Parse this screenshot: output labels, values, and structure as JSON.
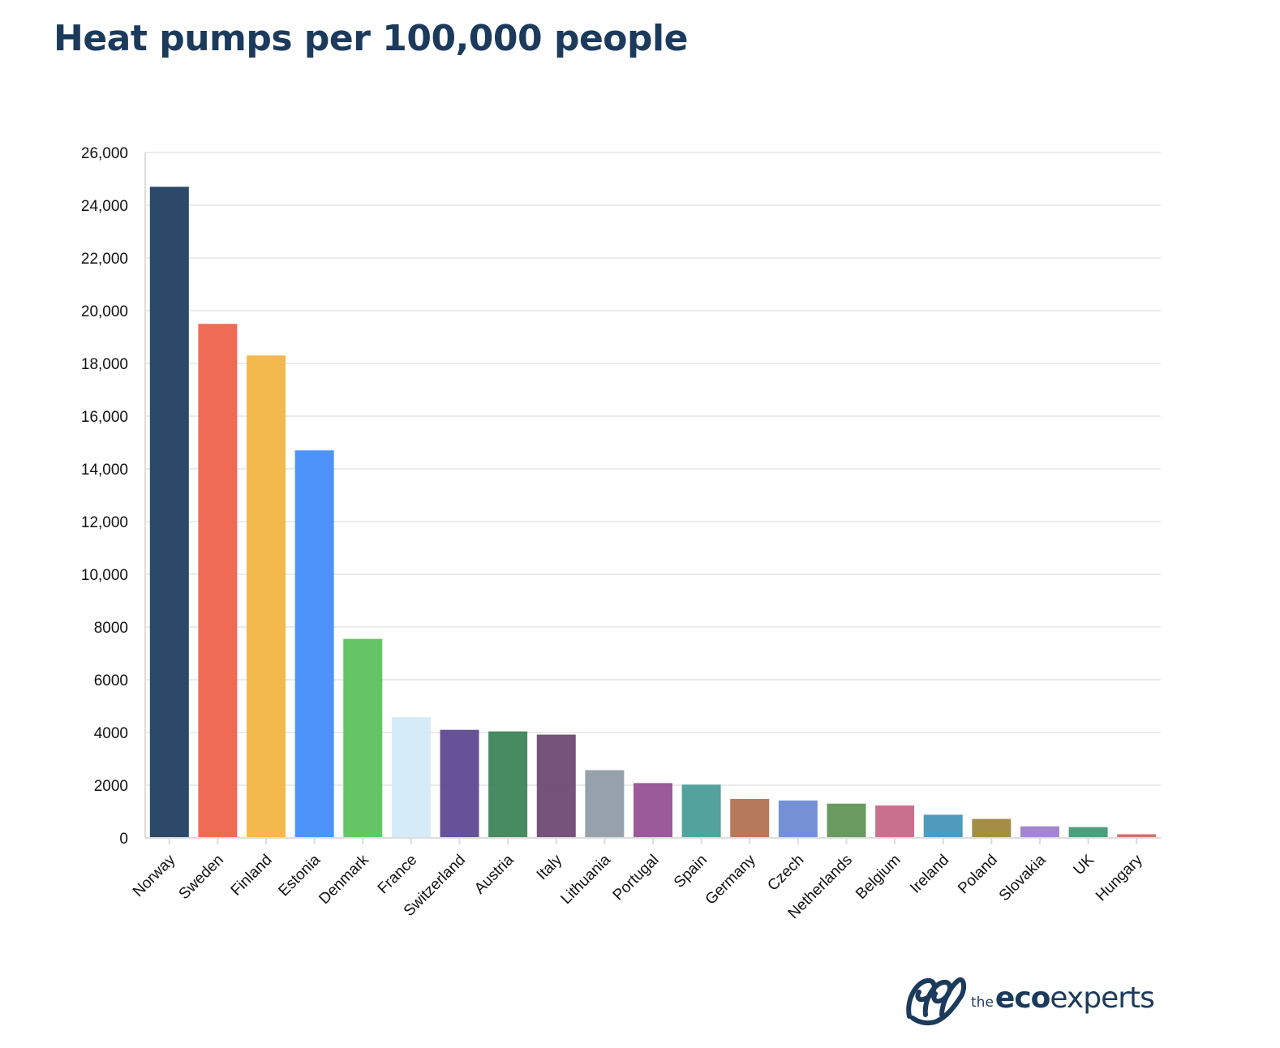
{
  "chart_data": {
    "type": "bar",
    "title": "Heat pumps per 100,000 people",
    "xlabel": "",
    "ylabel": "",
    "ylim": [
      0,
      26000
    ],
    "yticks": [
      0,
      2000,
      4000,
      6000,
      8000,
      10000,
      12000,
      14000,
      16000,
      18000,
      20000,
      22000,
      24000,
      26000
    ],
    "ytick_labels": [
      "0",
      "2000",
      "4000",
      "6000",
      "8000",
      "10,000",
      "12,000",
      "14,000",
      "16,000",
      "18,000",
      "20,000",
      "22,000",
      "24,000",
      "26,000"
    ],
    "grid": true,
    "legend": "none",
    "categories": [
      "Norway",
      "Sweden",
      "Finland",
      "Estonia",
      "Denmark",
      "France",
      "Switzerland",
      "Austria",
      "Italy",
      "Lithuania",
      "Portugal",
      "Spain",
      "Germany",
      "Czech",
      "Netherlands",
      "Belgium",
      "Ireland",
      "Poland",
      "Slovakia",
      "UK",
      "Hungary"
    ],
    "values": [
      24700,
      19500,
      18300,
      14700,
      7550,
      4580,
      4100,
      4040,
      3920,
      2570,
      2080,
      2020,
      1480,
      1420,
      1300,
      1230,
      880,
      720,
      440,
      410,
      140
    ],
    "colors": [
      "#1b3a5c",
      "#ef5e48",
      "#f3b33f",
      "#3f8afa",
      "#57c05a",
      "#d2e9f7",
      "#59448e",
      "#388055",
      "#6a4470",
      "#8e99a4",
      "#934d92",
      "#449a95",
      "#b06f4c",
      "#6888d3",
      "#5c9153",
      "#c56485",
      "#3f92b8",
      "#9c8436",
      "#9c7ccb",
      "#419673",
      "#c46a5f"
    ]
  },
  "branding": {
    "the": "the",
    "eco": "eco",
    "experts": "experts",
    "logo_icon": "ee-swirl-icon"
  }
}
